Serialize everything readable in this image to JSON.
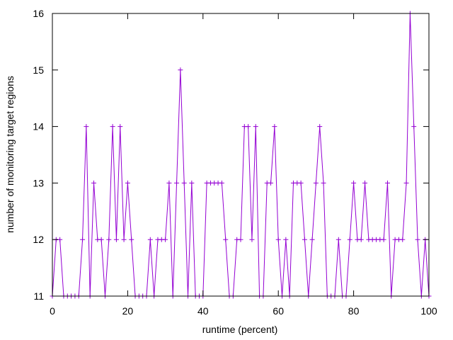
{
  "chart_data": {
    "type": "line",
    "xlabel": "runtime (percent)",
    "ylabel": "number of monitoring target regions",
    "xlim": [
      0,
      100
    ],
    "ylim": [
      11,
      16
    ],
    "x_ticks": [
      0,
      20,
      40,
      60,
      80,
      100
    ],
    "y_ticks": [
      11,
      12,
      13,
      14,
      15,
      16
    ],
    "grid": false,
    "legend": "none",
    "series": [
      {
        "color": "#9400d3",
        "marker": "plus",
        "x": [
          0,
          1,
          2,
          3,
          4,
          5,
          6,
          7,
          8,
          9,
          10,
          11,
          12,
          13,
          14,
          15,
          16,
          17,
          18,
          19,
          20,
          21,
          22,
          23,
          24,
          25,
          26,
          27,
          28,
          29,
          30,
          31,
          32,
          33,
          34,
          35,
          36,
          37,
          38,
          39,
          40,
          41,
          42,
          43,
          44,
          45,
          46,
          47,
          48,
          49,
          50,
          51,
          52,
          53,
          54,
          55,
          56,
          57,
          58,
          59,
          60,
          61,
          62,
          63,
          64,
          65,
          66,
          67,
          68,
          69,
          70,
          71,
          72,
          73,
          74,
          75,
          76,
          77,
          78,
          79,
          80,
          81,
          82,
          83,
          84,
          85,
          86,
          87,
          88,
          89,
          90,
          91,
          92,
          93,
          94,
          95,
          96,
          97,
          98,
          99,
          100
        ],
        "y": [
          11,
          12,
          12,
          11,
          11,
          11,
          11,
          11,
          12,
          14,
          11,
          13,
          12,
          12,
          11,
          12,
          14,
          12,
          14,
          12,
          13,
          12,
          11,
          11,
          11,
          11,
          12,
          11,
          12,
          12,
          12,
          13,
          11,
          13,
          15,
          13,
          11,
          13,
          11,
          11,
          11,
          13,
          13,
          13,
          13,
          13,
          12,
          11,
          11,
          12,
          12,
          14,
          14,
          12,
          14,
          11,
          11,
          13,
          13,
          14,
          12,
          11,
          12,
          11,
          13,
          13,
          13,
          12,
          11,
          12,
          13,
          14,
          13,
          11,
          11,
          11,
          12,
          11,
          11,
          12,
          13,
          12,
          12,
          13,
          12,
          12,
          12,
          12,
          12,
          13,
          11,
          12,
          12,
          12,
          13,
          16,
          14,
          12,
          11,
          12,
          11
        ]
      }
    ]
  }
}
